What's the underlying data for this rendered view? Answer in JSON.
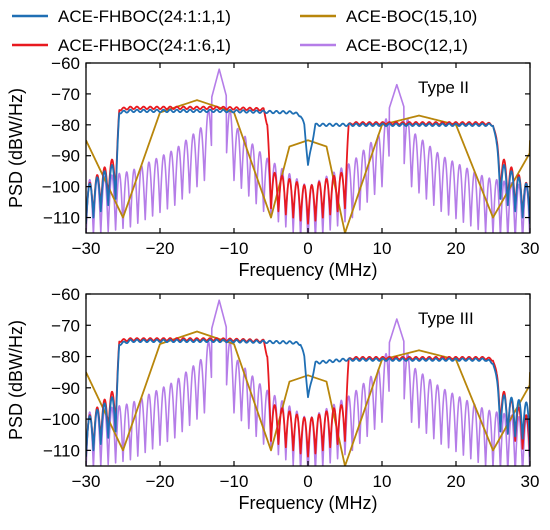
{
  "legend": [
    {
      "label": "ACE-FHBOC(24:1:1,1)",
      "color": "#1f6fb4"
    },
    {
      "label": "ACE-BOC(15,10)",
      "color": "#b8860b"
    },
    {
      "label": "ACE-FHBOC(24:1:6,1)",
      "color": "#e8191f"
    },
    {
      "label": "ACE-BOC(12,1)",
      "color": "#b57de8"
    }
  ],
  "colors": {
    "fhboc_1_1": "#1f6fb4",
    "fhboc_6_1": "#e8191f",
    "boc_15_10": "#b8860b",
    "boc_12_1": "#b57de8"
  },
  "chart_data": [
    {
      "type": "line",
      "annotation": "Type II",
      "xlabel": "Frequency (MHz)",
      "ylabel": "PSD (dBW/Hz)",
      "xlim": [
        -30,
        30
      ],
      "ylim": [
        -115,
        -60
      ],
      "xticks": [
        -30,
        -20,
        -10,
        0,
        10,
        20,
        30
      ],
      "yticks": [
        -60,
        -70,
        -80,
        -90,
        -100,
        -110
      ],
      "grid": false,
      "series": [
        {
          "name": "ACE-FHBOC(24:1:1,1)",
          "x": [
            -30,
            -26,
            -25.5,
            -24,
            -12,
            -2,
            -1,
            -0.5,
            0,
            1,
            5,
            6,
            12,
            24,
            25,
            26,
            30
          ],
          "y": [
            -100,
            -92,
            -76,
            -75.5,
            -75.5,
            -76,
            -77,
            -80,
            -93,
            -80,
            -80,
            -80,
            -80,
            -80,
            -80,
            -92,
            -100
          ]
        },
        {
          "name": "ACE-FHBOC(24:1:6,1)",
          "x": [
            -30,
            -26,
            -25.5,
            -24,
            -12,
            -6,
            -5.5,
            -5,
            0,
            5,
            5.5,
            6,
            12,
            24,
            25,
            26,
            30
          ],
          "y": [
            -100,
            -90,
            -75,
            -74.5,
            -74.5,
            -75,
            -80,
            -95,
            -100,
            -95,
            -80,
            -79.5,
            -79.5,
            -79.5,
            -80,
            -90,
            -100
          ]
        },
        {
          "name": "ACE-BOC(15,10)",
          "x": [
            -30,
            -25,
            -20,
            -15,
            -10,
            -5,
            -2.5,
            0,
            2.5,
            5,
            10,
            15,
            20,
            25,
            30
          ],
          "y": [
            -85,
            -110,
            -76,
            -72,
            -76,
            -110,
            -87,
            -85,
            -87,
            -115,
            -80,
            -77,
            -80,
            -110,
            -89
          ]
        },
        {
          "name": "ACE-BOC(12,1)",
          "x": [
            -30,
            -24,
            -18,
            -14,
            -12,
            -10,
            -6,
            0,
            6,
            10,
            12,
            14,
            18,
            24,
            30
          ],
          "y": [
            -98,
            -95,
            -88,
            -80,
            -62,
            -80,
            -90,
            -100,
            -92,
            -82,
            -67,
            -82,
            -90,
            -97,
            -100
          ]
        }
      ]
    },
    {
      "type": "line",
      "annotation": "Type III",
      "xlabel": "Frequency (MHz)",
      "ylabel": "PSD (dBW/Hz)",
      "xlim": [
        -30,
        30
      ],
      "ylim": [
        -115,
        -60
      ],
      "xticks": [
        -30,
        -20,
        -10,
        0,
        10,
        20,
        30
      ],
      "yticks": [
        -60,
        -70,
        -80,
        -90,
        -100,
        -110
      ],
      "grid": false,
      "series": [
        {
          "name": "ACE-FHBOC(24:1:1,1)",
          "x": [
            -30,
            -26,
            -25.5,
            -24,
            -12,
            -2,
            -1,
            -0.5,
            0,
            1,
            5,
            6,
            12,
            24,
            25,
            26,
            30
          ],
          "y": [
            -100,
            -92,
            -76,
            -75,
            -75,
            -75.5,
            -76,
            -80,
            -93,
            -82,
            -81,
            -81,
            -81,
            -81,
            -82,
            -92,
            -95
          ]
        },
        {
          "name": "ACE-FHBOC(24:1:6,1)",
          "x": [
            -30,
            -26,
            -25.5,
            -24,
            -12,
            -6,
            -5.5,
            -5,
            0,
            5,
            5.5,
            6,
            12,
            24,
            25,
            26,
            30
          ],
          "y": [
            -100,
            -90,
            -75,
            -74.5,
            -74.5,
            -75,
            -80,
            -95,
            -100,
            -95,
            -81,
            -80.5,
            -80.5,
            -80.5,
            -81,
            -90,
            -100
          ]
        },
        {
          "name": "ACE-BOC(15,10)",
          "x": [
            -30,
            -25,
            -20,
            -15,
            -10,
            -5,
            -2.5,
            0,
            2.5,
            5,
            10,
            15,
            20,
            25,
            30
          ],
          "y": [
            -85,
            -110,
            -76,
            -72,
            -76,
            -110,
            -88,
            -86,
            -88,
            -115,
            -81,
            -78,
            -81,
            -110,
            -89
          ]
        },
        {
          "name": "ACE-BOC(12,1)",
          "x": [
            -30,
            -24,
            -18,
            -14,
            -12,
            -10,
            -6,
            0,
            6,
            10,
            12,
            14,
            18,
            24,
            30
          ],
          "y": [
            -98,
            -95,
            -88,
            -80,
            -62,
            -80,
            -90,
            -100,
            -92,
            -83,
            -68,
            -83,
            -90,
            -97,
            -100
          ]
        }
      ]
    }
  ]
}
